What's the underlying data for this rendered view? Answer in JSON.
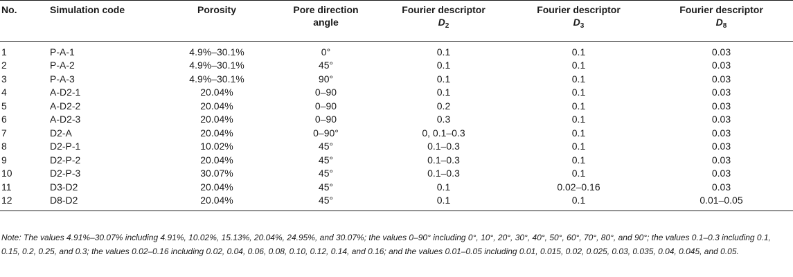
{
  "table": {
    "headers": [
      {
        "line1": "No.",
        "line2": ""
      },
      {
        "line1": "Simulation code",
        "line2": ""
      },
      {
        "line1": "Porosity",
        "line2": ""
      },
      {
        "line1": "Pore direction",
        "line2": "angle"
      },
      {
        "line1": "Fourier descriptor",
        "symbol": "D",
        "subscript": "2"
      },
      {
        "line1": "Fourier descriptor",
        "symbol": "D",
        "subscript": "3"
      },
      {
        "line1": "Fourier descriptor",
        "symbol": "D",
        "subscript": "8"
      }
    ],
    "rows": [
      [
        "1",
        "P-A-1",
        "4.9%–30.1%",
        "0°",
        "0.1",
        "0.1",
        "0.03"
      ],
      [
        "2",
        "P-A-2",
        "4.9%–30.1%",
        "45°",
        "0.1",
        "0.1",
        "0.03"
      ],
      [
        "3",
        "P-A-3",
        "4.9%–30.1%",
        "90°",
        "0.1",
        "0.1",
        "0.03"
      ],
      [
        "4",
        "A-D2-1",
        "20.04%",
        "0–90",
        "0.1",
        "0.1",
        "0.03"
      ],
      [
        "5",
        "A-D2-2",
        "20.04%",
        "0–90",
        "0.2",
        "0.1",
        "0.03"
      ],
      [
        "6",
        "A-D2-3",
        "20.04%",
        "0–90",
        "0.3",
        "0.1",
        "0.03"
      ],
      [
        "7",
        "D2-A",
        "20.04%",
        "0–90°",
        "0, 0.1–0.3",
        "0.1",
        "0.03"
      ],
      [
        "8",
        "D2-P-1",
        "10.02%",
        "45°",
        "0.1–0.3",
        "0.1",
        "0.03"
      ],
      [
        "9",
        "D2-P-2",
        "20.04%",
        "45°",
        "0.1–0.3",
        "0.1",
        "0.03"
      ],
      [
        "10",
        "D2-P-3",
        "30.07%",
        "45°",
        "0.1–0.3",
        "0.1",
        "0.03"
      ],
      [
        "11",
        "D3-D2",
        "20.04%",
        "45°",
        "0.1",
        "0.02–0.16",
        "0.03"
      ],
      [
        "12",
        "D8-D2",
        "20.04%",
        "45°",
        "0.1",
        "0.1",
        "0.01–0.05"
      ]
    ]
  },
  "note": "Note: The values 4.91%–30.07% including 4.91%, 10.02%, 15.13%, 20.04%, 24.95%, and 30.07%; the values 0–90° including 0°, 10°, 20°, 30°, 40°, 50°, 60°, 70°, 80°, and 90°; the values 0.1–0.3 including 0.1, 0.15, 0.2, 0.25, and 0.3; the values 0.02–0.16 including 0.02, 0.04, 0.06, 0.08, 0.10, 0.12, 0.14, and 0.16; and the values 0.01–0.05 including 0.01, 0.015, 0.02, 0.025, 0.03, 0.035, 0.04, 0.045, and 0.05."
}
